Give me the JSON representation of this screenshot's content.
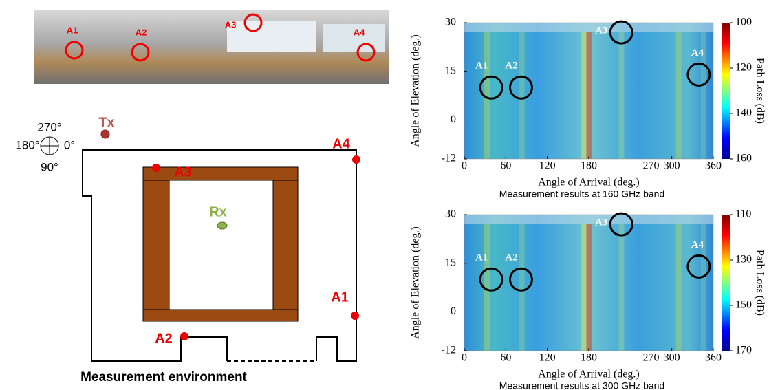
{
  "panorama": {
    "labels": [
      "A1",
      "A2",
      "A3",
      "A4"
    ]
  },
  "floor_plan": {
    "compass": [
      "270°",
      "180°",
      "0°",
      "90°"
    ],
    "tx": "Tx",
    "rx": "Rx",
    "points": [
      "A1",
      "A2",
      "A3",
      "A4"
    ],
    "caption": "Measurement environment"
  },
  "chart_data": [
    {
      "type": "heatmap",
      "caption": "Measurement results at 160 GHz band",
      "x_label": "Angle of Arrival (deg.)",
      "y_label": "Angle of Elevation (deg.)",
      "xlim": [
        0,
        360
      ],
      "ylim": [
        -12,
        30
      ],
      "xticks": [
        0,
        60,
        120,
        180,
        270,
        300,
        360
      ],
      "yticks": [
        -12,
        0,
        15,
        30
      ],
      "colorbar": {
        "label": "Path Loss (dB)",
        "lim": [
          100,
          160
        ],
        "ticks": [
          100,
          120,
          140,
          160
        ]
      },
      "markers": [
        {
          "label": "A1",
          "x": 39,
          "y": 10
        },
        {
          "label": "A2",
          "x": 82,
          "y": 10
        },
        {
          "label": "A3",
          "x": 227,
          "y": 27
        },
        {
          "label": "A4",
          "x": 339,
          "y": 14
        }
      ]
    },
    {
      "type": "heatmap",
      "caption": "Measurement results at 300 GHz band",
      "x_label": "Angle of Arrival (deg.)",
      "y_label": "Angle of Elevation (deg.)",
      "xlim": [
        0,
        360
      ],
      "ylim": [
        -12,
        30
      ],
      "xticks": [
        0,
        60,
        120,
        180,
        270,
        300,
        360
      ],
      "yticks": [
        -12,
        0,
        15,
        30
      ],
      "colorbar": {
        "label": "Path Loss (dB)",
        "lim": [
          110,
          170
        ],
        "ticks": [
          110,
          130,
          150,
          170
        ]
      },
      "markers": [
        {
          "label": "A1",
          "x": 39,
          "y": 10
        },
        {
          "label": "A2",
          "x": 82,
          "y": 10
        },
        {
          "label": "A3",
          "x": 227,
          "y": 27
        },
        {
          "label": "A4",
          "x": 339,
          "y": 14
        }
      ]
    }
  ]
}
